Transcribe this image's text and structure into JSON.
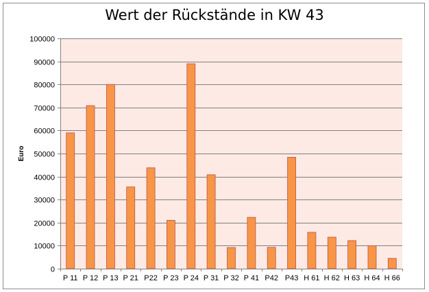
{
  "chart_data": {
    "type": "bar",
    "title": "Wert der Rückstände in KW 43",
    "xlabel": "",
    "ylabel": "Euro",
    "ylim": [
      0,
      100000
    ],
    "yticks": [
      0,
      10000,
      20000,
      30000,
      40000,
      50000,
      60000,
      70000,
      80000,
      90000,
      100000
    ],
    "grid": true,
    "legend": "none",
    "categories": [
      "P 11",
      "P 12",
      "P 13",
      "P 21",
      "P22",
      "P 23",
      "P 24",
      "P 31",
      "P 32",
      "P 41",
      "P42",
      "P43",
      "H 61",
      "H 62",
      "H 63",
      "H 64",
      "H 66"
    ],
    "values": [
      59000,
      70800,
      80000,
      35500,
      43800,
      21000,
      89000,
      40800,
      9200,
      22300,
      9300,
      48400,
      15800,
      13700,
      12200,
      10000,
      4500
    ],
    "colors": {
      "bar_fill": "#f79646",
      "bar_stroke": "#c0504d",
      "plot_background": "#fdeae4",
      "gridline": "#808080"
    }
  }
}
